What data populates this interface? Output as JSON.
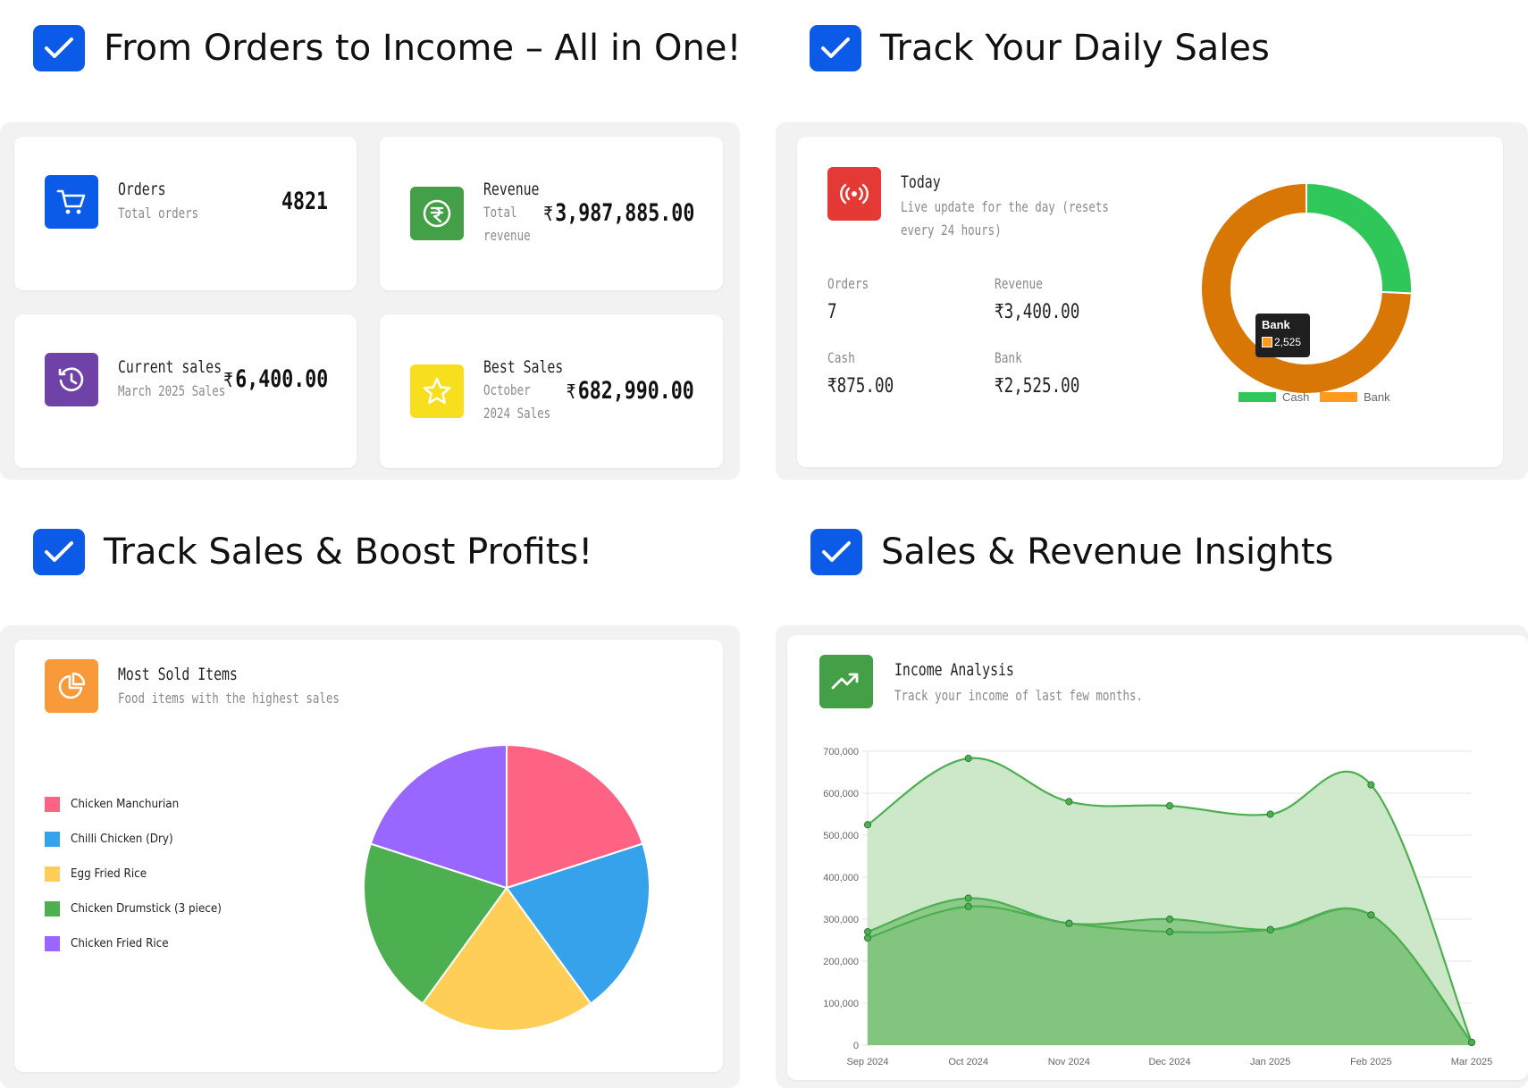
{
  "headings": {
    "top_left": "From Orders to Income – All in One!",
    "top_right": "Track Your Daily Sales",
    "bottom_left": "Track Sales & Boost Profits!",
    "bottom_right": "Sales & Revenue Insights"
  },
  "stats": {
    "orders": {
      "title": "Orders",
      "subtitle": "Total orders",
      "value": "4821",
      "icon": "cart-icon",
      "color": "#0b5be8"
    },
    "revenue": {
      "title": "Revenue",
      "subtitle": "Total revenue",
      "value": "3,987,885.00",
      "icon": "rupee-coin-icon",
      "color": "#43a047"
    },
    "current_sales": {
      "title": "Current sales",
      "subtitle": "March 2025 Sales",
      "value": "6,400.00",
      "icon": "history-icon",
      "color": "#6f42a8"
    },
    "best_sales": {
      "title": "Best Sales",
      "subtitle": "October 2024 Sales",
      "value": "682,990.00",
      "icon": "star-icon",
      "color": "#f7df1e"
    }
  },
  "currency_symbol": "₹",
  "today": {
    "title": "Today",
    "subtitle": "Live update for the day (resets every 24 hours)",
    "icon": "broadcast-icon",
    "icon_color": "#e53935",
    "orders_label": "Orders",
    "orders_value": "7",
    "revenue_label": "Revenue",
    "revenue_value": "3,400.00",
    "cash_label": "Cash",
    "cash_value": "875.00",
    "bank_label": "Bank",
    "bank_value": "2,525.00",
    "tooltip_title": "Bank",
    "tooltip_value": "2,525"
  },
  "most_sold": {
    "title": "Most Sold Items",
    "subtitle": "Food items with the highest sales",
    "icon": "pie-chart-icon",
    "icon_color": "#f89a3a"
  },
  "income": {
    "title": "Income Analysis",
    "subtitle": "Track your income of last few months.",
    "icon": "trending-up-icon",
    "icon_color": "#43a047"
  },
  "chart_data": [
    {
      "type": "pie",
      "variant": "doughnut",
      "categories": [
        "Cash",
        "Bank"
      ],
      "values": [
        875,
        2525
      ],
      "colors": [
        "#2fc75a",
        "#d97706"
      ],
      "legend_colors": [
        "#2fc75a",
        "#ff9a1f"
      ],
      "legend": "bottom"
    },
    {
      "type": "pie",
      "categories": [
        "Chicken Manchurian",
        "Chilli Chicken (Dry)",
        "Egg Fried Rice",
        "Chicken Drumstick (3 piece)",
        "Chicken Fried Rice"
      ],
      "values": [
        20,
        20,
        20,
        20,
        20
      ],
      "colors": [
        "#ff6384",
        "#36a2eb",
        "#ffce56",
        "#4caf50",
        "#9966ff"
      ],
      "legend": "left"
    },
    {
      "type": "area",
      "x": [
        "Sep 2024",
        "Oct 2024",
        "Nov 2024",
        "Dec 2024",
        "Jan 2025",
        "Feb 2025",
        "Mar 2025"
      ],
      "series": [
        {
          "values": [
            525000,
            682990,
            580000,
            570000,
            550000,
            620000,
            6400
          ]
        },
        {
          "values": [
            270000,
            350000,
            290000,
            300000,
            275000,
            310000,
            6400
          ]
        },
        {
          "values": [
            255000,
            330000,
            290000,
            270000,
            275000,
            310000,
            6400
          ]
        }
      ],
      "yticks": [
        "0",
        "100,000",
        "200,000",
        "300,000",
        "400,000",
        "500,000",
        "600,000",
        "700,000"
      ],
      "ylim": [
        0,
        700000
      ],
      "colors": [
        "#4caf50",
        "#4caf50",
        "#4caf50"
      ],
      "fill_colors": [
        "#c4e4c0",
        "#80c47e",
        "#80c47e"
      ],
      "grid": true
    }
  ]
}
